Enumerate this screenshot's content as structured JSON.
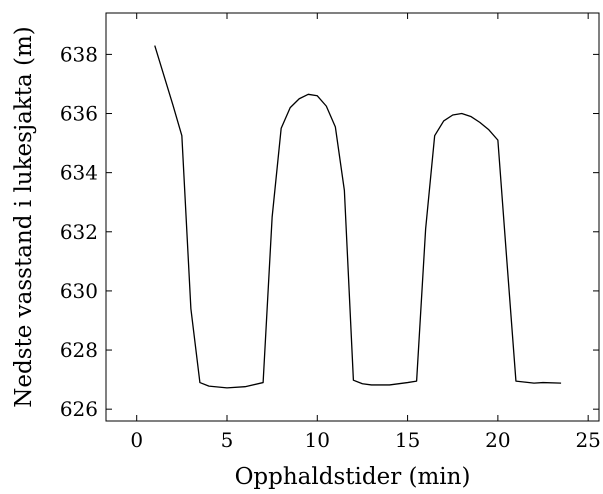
{
  "chart_data": {
    "type": "line",
    "title": "",
    "xlabel": "Opphaldstider (min)",
    "ylabel": "Nedste vasstand i lukesjakta (m)",
    "xlim": [
      -1.7,
      25.6
    ],
    "ylim": [
      625.6,
      639.4
    ],
    "xticks": [
      0,
      5,
      10,
      15,
      20,
      25
    ],
    "yticks": [
      626,
      628,
      630,
      632,
      634,
      636,
      638
    ],
    "grid": false,
    "legend": "none",
    "series": [
      {
        "color": "#000000",
        "x": [
          1.0,
          2.0,
          2.5,
          3.0,
          3.5,
          4.0,
          5.0,
          6.0,
          7.0,
          7.5,
          8.0,
          8.5,
          9.0,
          9.5,
          10.0,
          10.5,
          11.0,
          11.5,
          12.0,
          12.5,
          13.0,
          14.0,
          15.0,
          15.5,
          16.0,
          16.5,
          17.0,
          17.5,
          18.0,
          18.5,
          19.0,
          19.5,
          20.0,
          20.5,
          21.0,
          22.0,
          22.5,
          23.5
        ],
        "y": [
          638.3,
          636.3,
          635.25,
          629.4,
          626.9,
          626.78,
          626.72,
          626.76,
          626.9,
          632.5,
          635.5,
          636.2,
          636.5,
          636.65,
          636.6,
          636.25,
          635.55,
          633.4,
          626.98,
          626.86,
          626.82,
          626.82,
          626.9,
          626.95,
          632.1,
          635.25,
          635.75,
          635.95,
          636.0,
          635.9,
          635.7,
          635.45,
          635.1,
          631.0,
          626.95,
          626.88,
          626.9,
          626.88
        ]
      }
    ]
  }
}
